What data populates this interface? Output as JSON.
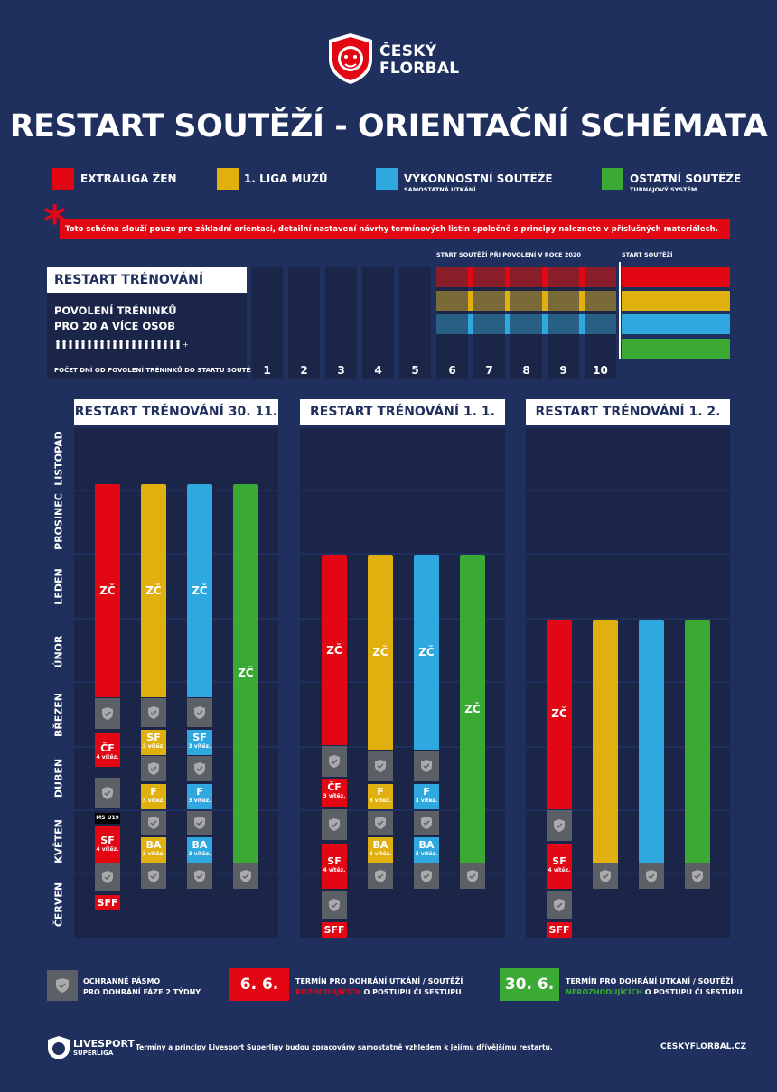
{
  "header": {
    "logo_line1": "ČESKÝ",
    "logo_line2": "FLORBAL",
    "title": "RESTART SOUTĚŽÍ - ORIENTAČNÍ SCHÉMATA"
  },
  "legend": [
    {
      "label": "EXTRALIGA ŽEN",
      "sub": "",
      "color": "#e30613"
    },
    {
      "label": "1. LIGA MUŽŮ",
      "sub": "",
      "color": "#e0b00f"
    },
    {
      "label": "VÝKONNOSTNÍ SOUTĚŽE",
      "sub": "SAMOSTATNÁ UTKÁNÍ",
      "color": "#2fa8e0"
    },
    {
      "label": "OSTATNÍ SOUTĚŽE",
      "sub": "TURNAJOVÝ SYSTÉM",
      "color": "#3aaa35"
    }
  ],
  "note": {
    "asterisk": "*",
    "text": "Toto schéma slouží pouze pro základní orientaci, detailní nastavení návrhy termínových listin společně s principy naleznete v příslušných materiálech."
  },
  "training": {
    "title": "RESTART TRÉNOVÁNÍ",
    "line1": "POVOLENÍ TRÉNINKŮ",
    "line2": "PRO 20 A VÍCE OSOB",
    "people": "🯅🯅🯅🯅🯅🯅🯅🯅🯅🯅🯅🯅🯅🯅🯅🯅🯅🯅🯅🯅+",
    "days_caption": "POČET DNÍ OD POVOLENÍ TRÉNINKŮ DO STARTU SOUTĚŽE:",
    "days": [
      "1",
      "2",
      "3",
      "4",
      "5",
      "6",
      "7",
      "8",
      "9",
      "10"
    ],
    "label_2020": "START SOUTĚŽÍ PŘI POVOLENÍ V ROCE 2020",
    "label_start": "START SOUTĚŽÍ"
  },
  "months": [
    "LISTOPAD",
    "PROSINEC",
    "LEDEN",
    "ÚNOR",
    "BŘEZEN",
    "DUBEN",
    "KVĚTEN",
    "ČERVEN"
  ],
  "scenarios": [
    {
      "title": "RESTART TRÉNOVÁNÍ 30. 11."
    },
    {
      "title": "RESTART TRÉNOVÁNÍ 1. 1."
    },
    {
      "title": "RESTART TRÉNOVÁNÍ 1. 2."
    }
  ],
  "labels": {
    "zc": "ZČ",
    "cf": "ČF",
    "sf": "SF",
    "f": "F",
    "ba": "BA",
    "sff": "SFF",
    "ms_u19": "MS U19",
    "wins4": "4 vítěz.",
    "wins3": "3 vítěz."
  },
  "footer_legend": {
    "shield_text1": "OCHRANNÉ PÁSMO",
    "shield_text2": "PRO DOHRÁNÍ FÁZE 2 TÝDNY",
    "date1": "6. 6.",
    "date1_text1": "TERMÍN PRO DOHRÁNÍ UTKÁNÍ / SOUTĚŽÍ",
    "date1_hl": "ROZHODUJÍCÍCH",
    "date1_text2": " O POSTUPU ČI SESTUPU",
    "date2": "30. 6.",
    "date2_text1": "TERMÍN PRO DOHRÁNÍ UTKÁNÍ / SOUTĚŽÍ",
    "date2_hl": "NEROZHODUJÍCÍCH",
    "date2_text2": " O POSTUPU ČI SESTUPU"
  },
  "footer": {
    "brand1": "LIVESPORT",
    "brand2": "SUPERLIGA",
    "text": "Termíny a principy Livesport Superligy budou zpracovány samostatně vzhledem k jejímu dřívějšímu restartu.",
    "url": "CESKYFLORBAL.CZ"
  },
  "colors": {
    "bg": "#1f2f5e",
    "panel": "#1a2548",
    "red": "#e30613",
    "yellow": "#e0b00f",
    "blue": "#2fa8e0",
    "green": "#3aaa35",
    "grey": "#5b5f66"
  }
}
